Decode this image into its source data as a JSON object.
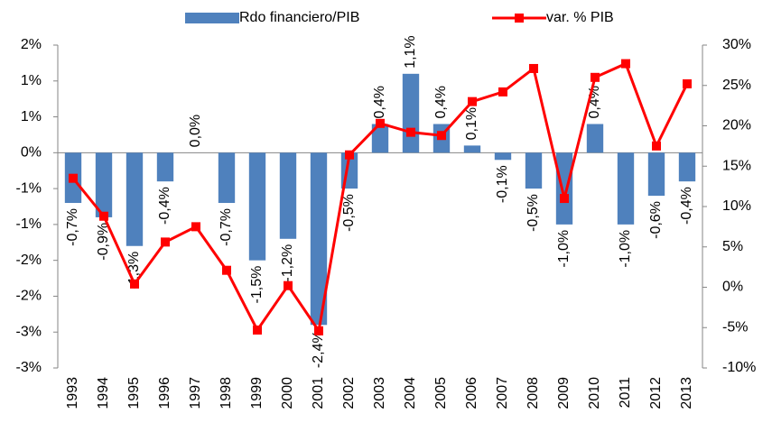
{
  "chart_data": {
    "type": "bar-line",
    "categories": [
      "1993",
      "1994",
      "1995",
      "1996",
      "1997",
      "1998",
      "1999",
      "2000",
      "2001",
      "2002",
      "2003",
      "2004",
      "2005",
      "2006",
      "2007",
      "2008",
      "2009",
      "2010",
      "2011",
      "2012",
      "2013"
    ],
    "series": [
      {
        "name": "Rdo financiero/PIB",
        "type": "bar",
        "color": "#4f81bd",
        "values": [
          -0.7,
          -0.9,
          -1.3,
          -0.4,
          0.0,
          -0.7,
          -1.5,
          -1.2,
          -2.4,
          -0.5,
          0.4,
          1.1,
          0.4,
          0.1,
          -0.1,
          -0.5,
          -1.0,
          0.4,
          -1.0,
          -0.6,
          -0.4
        ],
        "value_labels": [
          "-0,7%",
          "-0,9%",
          "-1,3%",
          "-0,4%",
          "0,0%",
          "-0,7%",
          "-1,5%",
          "-1,2%",
          "-2,4%",
          "-0,5%",
          "0,4%",
          "1,1%",
          "0,4%",
          "0,1%",
          "-0,1%",
          "-0,5%",
          "-1,0%",
          "0,4%",
          "-1,0%",
          "-0,6%",
          "-0,4%"
        ]
      },
      {
        "name": "var. % PIB",
        "type": "line",
        "color": "#ff0000",
        "axis": "y2",
        "values": [
          13.5,
          8.8,
          0.4,
          5.6,
          7.5,
          2.1,
          -5.3,
          0.2,
          -5.4,
          16.4,
          20.3,
          19.2,
          18.8,
          23.0,
          24.2,
          27.1,
          11.0,
          26.0,
          27.7,
          17.5,
          25.2
        ]
      }
    ],
    "ylim": [
      -3,
      1.5
    ],
    "yticks": [
      {
        "value": 1.5,
        "label": "2%"
      },
      {
        "value": 1.0,
        "label": "1%"
      },
      {
        "value": 0.5,
        "label": "1%"
      },
      {
        "value": 0,
        "label": "0%"
      },
      {
        "value": -0.5,
        "label": "-1%"
      },
      {
        "value": -1.0,
        "label": "-1%"
      },
      {
        "value": -1.5,
        "label": "-2%"
      },
      {
        "value": -2.0,
        "label": "-2%"
      },
      {
        "value": -2.5,
        "label": "-3%"
      },
      {
        "value": -3.0,
        "label": "-3%"
      }
    ],
    "y2lim": [
      -10,
      30
    ],
    "y2ticks": [
      {
        "value": 30,
        "label": "30%"
      },
      {
        "value": 25,
        "label": "25%"
      },
      {
        "value": 20,
        "label": "20%"
      },
      {
        "value": 15,
        "label": "15%"
      },
      {
        "value": 10,
        "label": "10%"
      },
      {
        "value": 5,
        "label": "5%"
      },
      {
        "value": 0,
        "label": "0%"
      },
      {
        "value": -5,
        "label": "-5%"
      },
      {
        "value": -10,
        "label": "-10%"
      }
    ],
    "grid": false,
    "legend": "top"
  }
}
